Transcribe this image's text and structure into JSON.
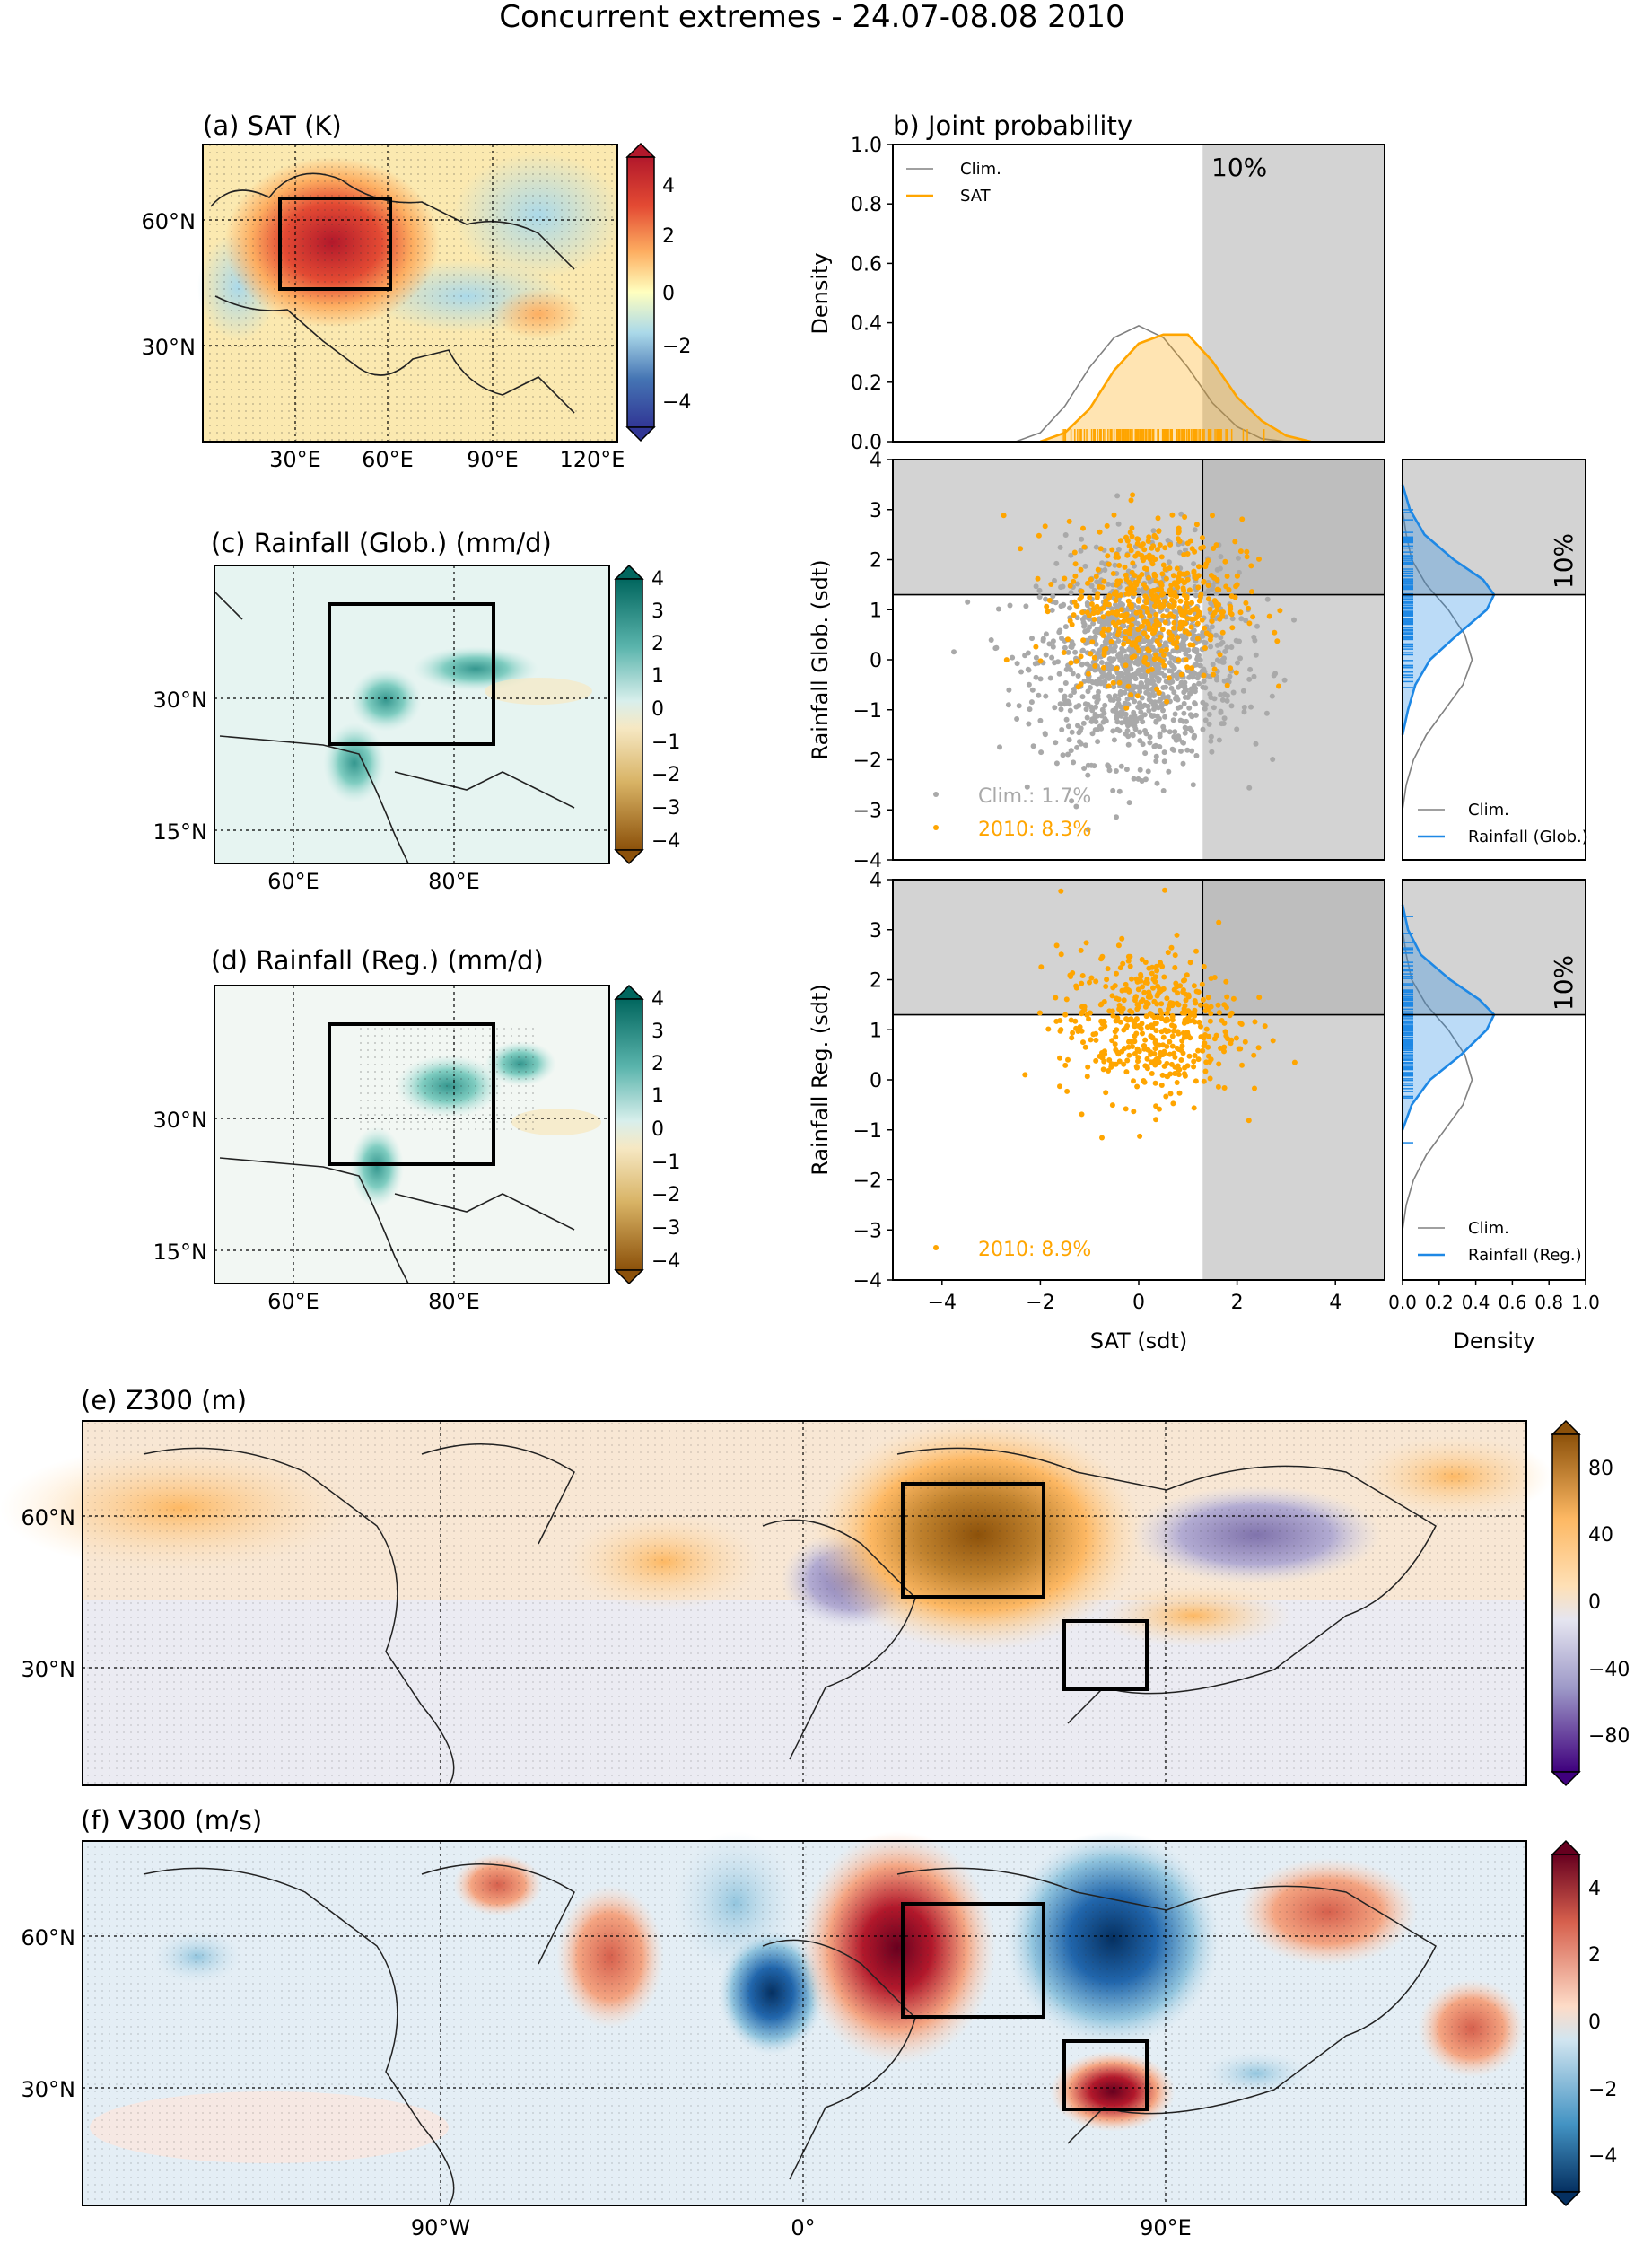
{
  "figure_title": "Concurrent extremes - 24.07-08.08 2010",
  "colors": {
    "orange": "#ffa500",
    "grey": "#a9a9a9",
    "blue": "#1e88e5",
    "shade": "#d3d3d3",
    "red_dark": "#b2182b",
    "blue_dark": "#2166ac",
    "brown_dark": "#8c510a",
    "teal_dark": "#01665e",
    "purple_dark": "#3f007d"
  },
  "panels": {
    "a": {
      "title": "(a) SAT (K)",
      "lat_labels": [
        "60°N",
        "30°N"
      ],
      "lon_labels": [
        "30°E",
        "60°E",
        "90°E",
        "120°E"
      ],
      "colorbar_ticks": [
        "4",
        "2",
        "0",
        "−2",
        "−4"
      ]
    },
    "c": {
      "title": "(c) Rainfall (Glob.) (mm/d)",
      "lat_labels": [
        "30°N",
        "15°N"
      ],
      "lon_labels": [
        "60°E",
        "80°E"
      ],
      "colorbar_ticks": [
        "4",
        "3",
        "2",
        "1",
        "0",
        "−1",
        "−2",
        "−3",
        "−4"
      ]
    },
    "d": {
      "title": "(d) Rainfall (Reg.) (mm/d)",
      "lat_labels": [
        "30°N",
        "15°N"
      ],
      "lon_labels": [
        "60°E",
        "80°E"
      ],
      "colorbar_ticks": [
        "4",
        "3",
        "2",
        "1",
        "0",
        "−1",
        "−2",
        "−3",
        "−4"
      ]
    },
    "e": {
      "title": "(e) Z300 (m)",
      "lat_labels": [
        "60°N",
        "30°N"
      ],
      "colorbar_ticks": [
        "80",
        "40",
        "0",
        "−40",
        "−80"
      ]
    },
    "f": {
      "title": "(f) V300 (m/s)",
      "lat_labels": [
        "60°N",
        "30°N"
      ],
      "lon_labels": [
        "90°W",
        "0°",
        "90°E"
      ],
      "colorbar_ticks": [
        "4",
        "2",
        "0",
        "−2",
        "−4"
      ]
    }
  },
  "chart_data": [
    {
      "id": "b_density",
      "type": "area",
      "title": "b) Joint probability",
      "ylabel": "Density",
      "xlim": [
        -5,
        5
      ],
      "ylim": [
        0,
        1
      ],
      "yticks": [
        "0.0",
        "0.2",
        "0.4",
        "0.6",
        "0.8",
        "1.0"
      ],
      "threshold_label": "10%",
      "threshold_x": 1.3,
      "legend": [
        "Clim.",
        "SAT"
      ],
      "series": [
        {
          "name": "Clim.",
          "x": [
            -2.5,
            -2,
            -1.5,
            -1,
            -0.5,
            0,
            0.5,
            1,
            1.5,
            2,
            2.5,
            3
          ],
          "y": [
            0.0,
            0.03,
            0.12,
            0.25,
            0.35,
            0.39,
            0.35,
            0.25,
            0.13,
            0.05,
            0.01,
            0.0
          ]
        },
        {
          "name": "SAT",
          "x": [
            -2,
            -1.5,
            -1,
            -0.5,
            0,
            0.5,
            1,
            1.5,
            2,
            2.5,
            3,
            3.5
          ],
          "y": [
            0.0,
            0.03,
            0.11,
            0.24,
            0.33,
            0.36,
            0.36,
            0.27,
            0.15,
            0.07,
            0.02,
            0.0
          ]
        }
      ]
    },
    {
      "id": "b_scatter_glob",
      "type": "scatter",
      "ylabel": "Rainfall Glob. (sdt)",
      "xlim": [
        -5,
        5
      ],
      "ylim": [
        -4,
        4
      ],
      "yticks": [
        "4",
        "3",
        "2",
        "1",
        "0",
        "−1",
        "−2",
        "−3",
        "−4"
      ],
      "threshold_x": 1.3,
      "threshold_y": 1.3,
      "series": [
        {
          "name": "Clim.",
          "label": "Clim.: 1.7%",
          "center": [
            0,
            0
          ],
          "spread": [
            1,
            1
          ],
          "count": 1300
        },
        {
          "name": "2010",
          "label": "2010: 8.3%",
          "center": [
            0.3,
            1.2
          ],
          "spread": [
            0.9,
            0.8
          ],
          "count": 520
        }
      ]
    },
    {
      "id": "b_scatter_reg",
      "type": "scatter",
      "ylabel": "Rainfall Reg. (sdt)",
      "xlabel": "SAT (sdt)",
      "xlim": [
        -5,
        5
      ],
      "ylim": [
        -4,
        4
      ],
      "xticks": [
        "−4",
        "−2",
        "0",
        "2",
        "4"
      ],
      "yticks": [
        "4",
        "3",
        "2",
        "1",
        "0",
        "−1",
        "−2",
        "−3",
        "−4"
      ],
      "threshold_x": 1.3,
      "threshold_y": 1.3,
      "series": [
        {
          "name": "2010",
          "label": "2010: 8.9%",
          "center": [
            0.2,
            1.1
          ],
          "spread": [
            0.9,
            0.75
          ],
          "count": 480
        }
      ]
    },
    {
      "id": "b_side_glob",
      "type": "area",
      "xlabel": "",
      "threshold_label": "10%",
      "legend": [
        "Clim.",
        "Rainfall (Glob.)"
      ],
      "xlim": [
        0,
        1
      ],
      "ylim": [
        -4,
        4
      ],
      "series": [
        {
          "name": "Clim.",
          "y": [
            -3,
            -2.5,
            -2,
            -1.5,
            -1,
            -0.5,
            0,
            0.5,
            1,
            1.5,
            2,
            2.5,
            3
          ],
          "x": [
            0.0,
            0.02,
            0.06,
            0.13,
            0.23,
            0.33,
            0.38,
            0.34,
            0.25,
            0.13,
            0.05,
            0.02,
            0.0
          ]
        },
        {
          "name": "Rainfall (Glob.)",
          "y": [
            -1.5,
            -1,
            -0.5,
            0,
            0.5,
            1,
            1.3,
            1.6,
            2,
            2.5,
            3,
            3.5
          ],
          "x": [
            0.0,
            0.03,
            0.07,
            0.15,
            0.3,
            0.46,
            0.5,
            0.44,
            0.28,
            0.12,
            0.04,
            0.0
          ]
        }
      ]
    },
    {
      "id": "b_side_reg",
      "type": "area",
      "xlabel": "Density",
      "xticks": [
        "0.0",
        "0.2",
        "0.4",
        "0.6",
        "0.8",
        "1.0"
      ],
      "threshold_label": "10%",
      "legend": [
        "Clim.",
        "Rainfall (Reg.)"
      ],
      "xlim": [
        0,
        1
      ],
      "ylim": [
        -4,
        4
      ],
      "series": [
        {
          "name": "Clim.",
          "y": [
            -3,
            -2.5,
            -2,
            -1.5,
            -1,
            -0.5,
            0,
            0.5,
            1,
            1.5,
            2,
            2.5,
            3
          ],
          "x": [
            0.0,
            0.02,
            0.06,
            0.13,
            0.23,
            0.33,
            0.38,
            0.34,
            0.25,
            0.13,
            0.05,
            0.02,
            0.0
          ]
        },
        {
          "name": "Rainfall (Reg.)",
          "y": [
            -1,
            -0.5,
            0,
            0.5,
            1,
            1.3,
            1.6,
            2,
            2.5,
            3,
            3.5
          ],
          "x": [
            0.0,
            0.05,
            0.15,
            0.32,
            0.46,
            0.5,
            0.42,
            0.26,
            0.1,
            0.03,
            0.0
          ]
        }
      ]
    }
  ]
}
